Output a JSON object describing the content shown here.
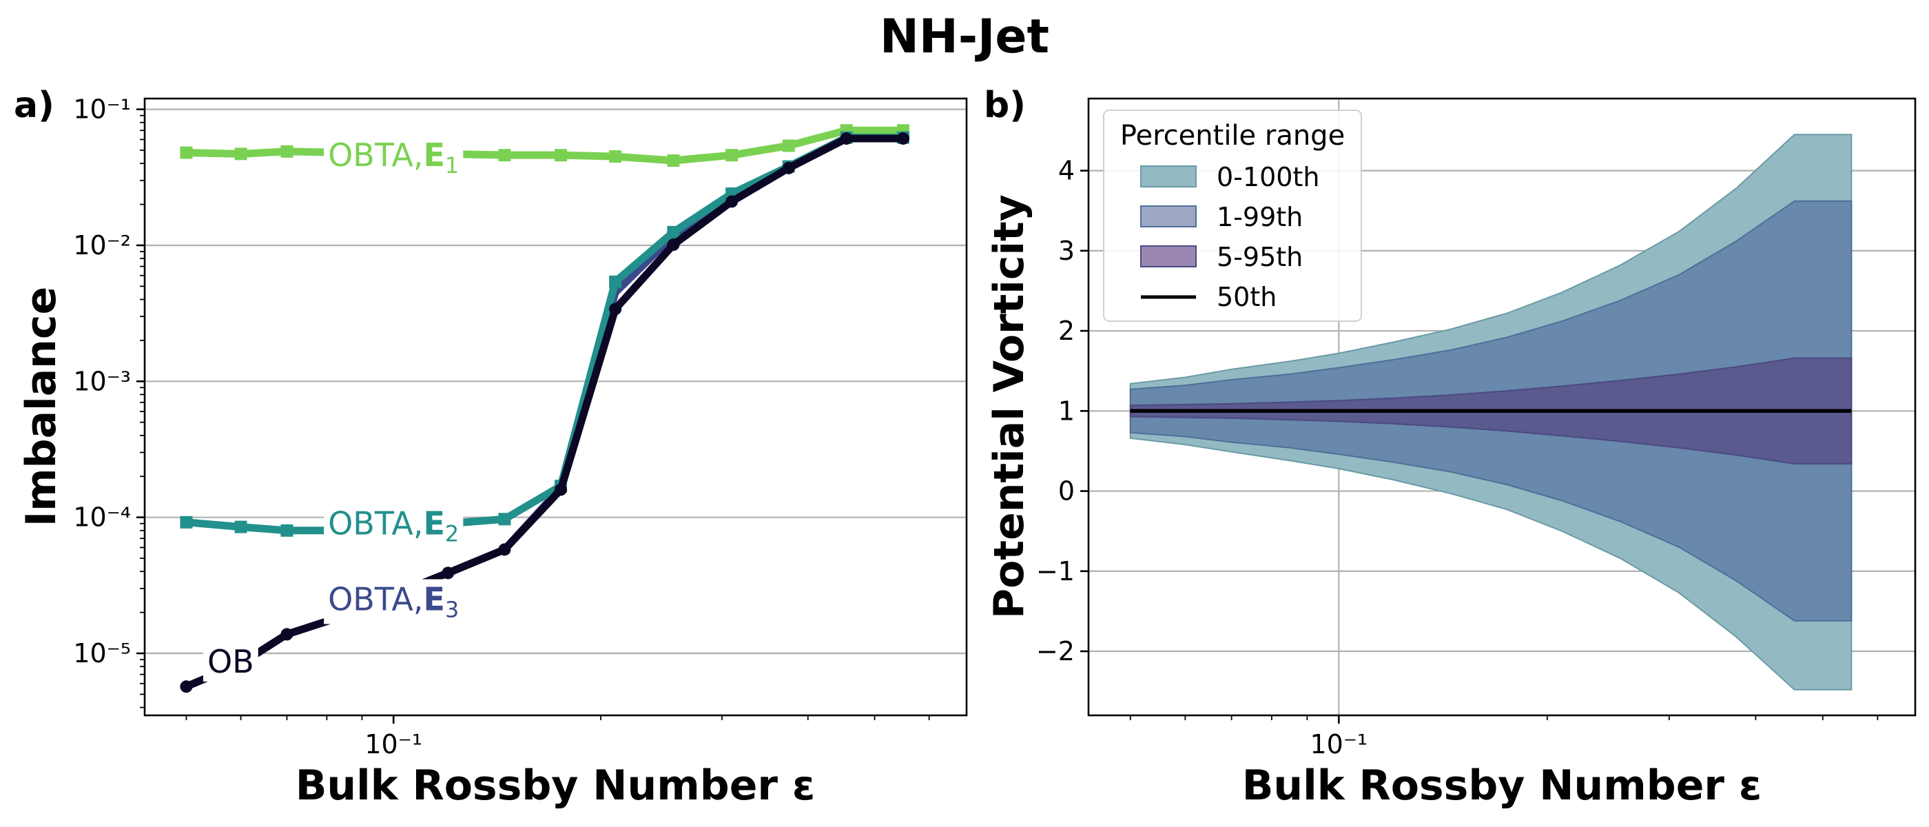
{
  "figure": {
    "title": "NH-Jet"
  },
  "chart_data": [
    {
      "panel": "a)",
      "type": "line",
      "xlabel": "Bulk Rossby Number ε",
      "ylabel": "Imbalance",
      "xscale": "log",
      "yscale": "log",
      "xlim": [
        0.0435,
        0.68
      ],
      "ylim": [
        3.5e-06,
        0.12
      ],
      "xticks": [
        {
          "value": 0.1,
          "label": "10⁻¹"
        }
      ],
      "yticks": [
        {
          "value": 1e-05,
          "label": "10⁻⁵"
        },
        {
          "value": 0.0001,
          "label": "10⁻⁴"
        },
        {
          "value": 0.001,
          "label": "10⁻³"
        },
        {
          "value": 0.01,
          "label": "10⁻²"
        },
        {
          "value": 0.1,
          "label": "10⁻¹"
        }
      ],
      "grid": "y",
      "x": [
        0.05,
        0.06,
        0.07,
        0.085,
        0.1,
        0.12,
        0.145,
        0.175,
        0.21,
        0.255,
        0.31,
        0.375,
        0.455,
        0.55
      ],
      "series": [
        {
          "name": "OBTA, E1",
          "label_prefix": "OBTA,",
          "label_sub": "1",
          "color": "#7ad151",
          "marker": "square",
          "values": [
            0.048,
            0.047,
            0.049,
            0.048,
            0.047,
            0.047,
            0.046,
            0.046,
            0.045,
            0.042,
            0.046,
            0.054,
            0.07,
            0.07
          ]
        },
        {
          "name": "OBTA, E2",
          "label_prefix": "OBTA,",
          "label_sub": "2",
          "color": "#22908c",
          "marker": "square",
          "values": [
            9.2e-05,
            8.5e-05,
            8e-05,
            8e-05,
            8.5e-05,
            9e-05,
            9.7e-05,
            0.00017,
            0.0054,
            0.0125,
            0.024,
            0.038,
            0.062,
            0.062
          ]
        },
        {
          "name": "OBTA, E3",
          "label_prefix": "OBTA,",
          "label_sub": "3",
          "color": "#3b4a8c",
          "marker": "none",
          "values": [
            5.7e-06,
            8.4e-06,
            1.38e-05,
            1.9e-05,
            2.7e-05,
            3.9e-05,
            5.8e-05,
            0.000165,
            0.0045,
            0.0118,
            0.0232,
            0.037,
            0.061,
            0.061
          ]
        },
        {
          "name": "OB",
          "label_prefix": "OB",
          "label_sub": "",
          "color": "#0b0724",
          "marker": "circle",
          "values": [
            5.7e-06,
            8.4e-06,
            1.38e-05,
            1.9e-05,
            2.7e-05,
            3.9e-05,
            5.8e-05,
            0.00016,
            0.0034,
            0.0101,
            0.021,
            0.037,
            0.061,
            0.061
          ]
        }
      ]
    },
    {
      "panel": "b)",
      "type": "area",
      "xlabel": "Bulk Rossby Number ε",
      "ylabel": "Potential Vorticity",
      "xscale": "log",
      "yscale": "linear",
      "xlim": [
        0.0435,
        0.68
      ],
      "ylim": [
        -2.8,
        4.9
      ],
      "xticks": [
        {
          "value": 0.1,
          "label": "10⁻¹"
        }
      ],
      "yticks": [
        {
          "value": -2,
          "label": "−2"
        },
        {
          "value": -1,
          "label": "−1"
        },
        {
          "value": 0,
          "label": "0"
        },
        {
          "value": 1,
          "label": "1"
        },
        {
          "value": 2,
          "label": "2"
        },
        {
          "value": 3,
          "label": "3"
        },
        {
          "value": 4,
          "label": "4"
        }
      ],
      "grid": "both",
      "legend": {
        "title": "Percentile range",
        "position": "top-left"
      },
      "x": [
        0.05,
        0.06,
        0.07,
        0.085,
        0.1,
        0.12,
        0.145,
        0.175,
        0.21,
        0.255,
        0.31,
        0.375,
        0.455,
        0.55
      ],
      "bands": [
        {
          "name": "0-100th",
          "fill": "#93bac3",
          "stroke": "#6a9aa6",
          "upper": [
            1.34,
            1.42,
            1.52,
            1.62,
            1.72,
            1.86,
            2.02,
            2.22,
            2.48,
            2.82,
            3.24,
            3.78,
            4.45,
            4.45
          ],
          "lower": [
            0.66,
            0.58,
            0.49,
            0.38,
            0.28,
            0.14,
            -0.03,
            -0.23,
            -0.5,
            -0.84,
            -1.27,
            -1.82,
            -2.48,
            -2.48
          ]
        },
        {
          "name": "1-99th",
          "fill": "#6888ac",
          "stroke": "#4f6f98",
          "upper": [
            1.27,
            1.32,
            1.39,
            1.46,
            1.54,
            1.64,
            1.76,
            1.92,
            2.12,
            2.38,
            2.7,
            3.12,
            3.62,
            3.62
          ],
          "lower": [
            0.73,
            0.68,
            0.61,
            0.54,
            0.46,
            0.36,
            0.24,
            0.08,
            -0.12,
            -0.38,
            -0.7,
            -1.12,
            -1.62,
            -1.62
          ]
        },
        {
          "name": "5-95th",
          "fill": "#5b5a8f",
          "stroke": "#4a4a80",
          "upper": [
            1.07,
            1.08,
            1.09,
            1.11,
            1.13,
            1.16,
            1.2,
            1.25,
            1.31,
            1.38,
            1.46,
            1.55,
            1.66,
            1.66
          ],
          "lower": [
            0.93,
            0.92,
            0.91,
            0.89,
            0.87,
            0.84,
            0.8,
            0.75,
            0.69,
            0.62,
            0.54,
            0.45,
            0.34,
            0.34
          ]
        }
      ],
      "median": {
        "name": "50th",
        "color": "#000000",
        "values": [
          1,
          1,
          1,
          1,
          1,
          1,
          1,
          1,
          1,
          1,
          1,
          1,
          1,
          1
        ]
      },
      "legend_colors": [
        "#93bac3",
        "#9ea8c4",
        "#9a88b3"
      ]
    }
  ]
}
